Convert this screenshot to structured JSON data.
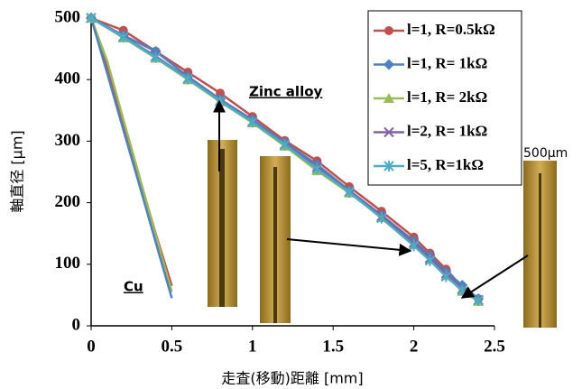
{
  "chart_data": {
    "type": "line",
    "x_label": "走査(移動)距離 [mm]",
    "y_label": "軸直径 [μm]",
    "xlim": [
      0,
      2.5
    ],
    "xticks": [
      0,
      0.5,
      1,
      1.5,
      2,
      2.5
    ],
    "ylim": [
      0,
      500
    ],
    "yticks": [
      0,
      100,
      200,
      300,
      400,
      500
    ],
    "x": [
      0,
      0.2,
      0.4,
      0.6,
      0.8,
      1.0,
      1.2,
      1.4,
      1.6,
      1.8,
      2.0,
      2.1,
      2.2,
      2.3,
      2.4
    ],
    "series": [
      {
        "name": "l=1, R=0.5kΩ",
        "color": "#c0504d",
        "marker": "circle",
        "values": [
          500,
          480,
          446,
          412,
          378,
          340,
          301,
          268,
          226,
          186,
          144,
          118,
          92,
          63,
          44
        ]
      },
      {
        "name": "l=1, R= 1kΩ",
        "color": "#4f81bd",
        "marker": "diamond",
        "values": [
          500,
          472,
          446,
          405,
          368,
          335,
          298,
          262,
          220,
          180,
          138,
          114,
          88,
          66,
          44
        ]
      },
      {
        "name": "l=1, R= 2kΩ",
        "color": "#9bbb59",
        "marker": "triangle",
        "values": [
          500,
          468,
          435,
          400,
          364,
          330,
          292,
          252,
          216,
          176,
          132,
          108,
          82,
          56,
          40
        ]
      },
      {
        "name": "l=2, R= 1kΩ",
        "color": "#8064a2",
        "marker": "x",
        "values": [
          500,
          470,
          438,
          402,
          366,
          332,
          295,
          258,
          218,
          178,
          135,
          110,
          85,
          60,
          42
        ]
      },
      {
        "name": "l=5, R=1kΩ",
        "color": "#4bacc6",
        "marker": "star",
        "values": [
          500,
          469,
          436,
          401,
          365,
          331,
          294,
          255,
          217,
          175,
          130,
          106,
          80,
          58,
          41
        ]
      }
    ],
    "cu_series": [
      {
        "color": "#c0504d",
        "x": [
          0,
          0.1,
          0.2,
          0.3,
          0.4,
          0.5
        ],
        "values": [
          500,
          420,
          330,
          240,
          150,
          65
        ]
      },
      {
        "color": "#9bbb59",
        "x": [
          0,
          0.1,
          0.2,
          0.3,
          0.4,
          0.5
        ],
        "values": [
          500,
          430,
          335,
          242,
          148,
          55
        ]
      },
      {
        "color": "#4f81bd",
        "x": [
          0,
          0.1,
          0.2,
          0.3,
          0.4,
          0.5
        ],
        "values": [
          500,
          410,
          318,
          228,
          136,
          45
        ]
      }
    ],
    "annotations": {
      "zinc": "Zinc alloy",
      "cu": "Cu",
      "scale": "500μm"
    }
  }
}
